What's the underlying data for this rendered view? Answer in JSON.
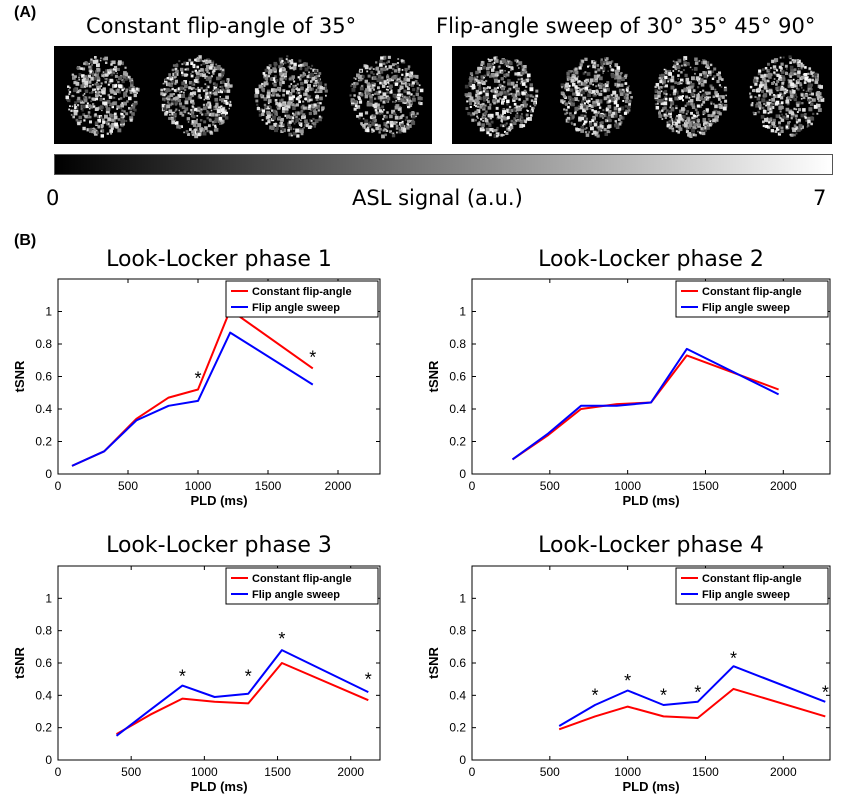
{
  "panel_a": {
    "label": "(A)",
    "left_heading": "Constant flip-angle of 35°",
    "right_heading": "Flip-angle sweep of 30° 35° 45° 90°",
    "colorbar": {
      "min_label": "0",
      "title": "ASL signal (a.u.)",
      "max_label": "7",
      "min": 0,
      "max": 7
    }
  },
  "panel_b": {
    "label": "(B)"
  },
  "chart_data": [
    {
      "type": "line",
      "title": "Look-Locker phase 1",
      "xlabel": "PLD (ms)",
      "ylabel": "tSNR",
      "xlim": [
        0,
        2300
      ],
      "ylim": [
        0,
        1.2
      ],
      "xticks": [
        "0",
        "500",
        "1000",
        "1500",
        "2000"
      ],
      "yticks": [
        "0",
        "0.2",
        "0.4",
        "0.6",
        "0.8",
        "1"
      ],
      "legend": "top-right",
      "series": [
        {
          "name": "Constant flip-angle",
          "color": "#ff0000",
          "x": [
            100,
            330,
            560,
            790,
            1000,
            1230,
            1820
          ],
          "y": [
            0.05,
            0.14,
            0.34,
            0.47,
            0.52,
            1.01,
            0.65
          ]
        },
        {
          "name": "Flip angle sweep",
          "color": "#0000ff",
          "x": [
            100,
            330,
            560,
            790,
            1000,
            1230,
            1820
          ],
          "y": [
            0.05,
            0.14,
            0.33,
            0.42,
            0.45,
            0.87,
            0.55
          ]
        }
      ],
      "annotations": [
        {
          "text": "*",
          "x": 1000,
          "y": 0.6
        },
        {
          "text": "*",
          "x": 1230,
          "y": 1.09
        },
        {
          "text": "*",
          "x": 1820,
          "y": 0.73
        }
      ]
    },
    {
      "type": "line",
      "title": "Look-Locker phase 2",
      "xlabel": "PLD (ms)",
      "ylabel": "tSNR",
      "xlim": [
        0,
        2300
      ],
      "ylim": [
        0,
        1.2
      ],
      "xticks": [
        "0",
        "500",
        "1000",
        "1500",
        "2000"
      ],
      "yticks": [
        "0",
        "0.2",
        "0.4",
        "0.6",
        "0.8",
        "1"
      ],
      "legend": "top-right",
      "series": [
        {
          "name": "Constant flip-angle",
          "color": "#ff0000",
          "x": [
            260,
            490,
            700,
            930,
            1150,
            1380,
            1970
          ],
          "y": [
            0.09,
            0.24,
            0.4,
            0.43,
            0.44,
            0.73,
            0.52
          ]
        },
        {
          "name": "Flip angle sweep",
          "color": "#0000ff",
          "x": [
            260,
            490,
            700,
            930,
            1150,
            1380,
            1970
          ],
          "y": [
            0.09,
            0.25,
            0.42,
            0.42,
            0.44,
            0.77,
            0.49
          ]
        }
      ],
      "annotations": []
    },
    {
      "type": "line",
      "title": "Look-Locker phase 3",
      "xlabel": "PLD (ms)",
      "ylabel": "tSNR",
      "xlim": [
        0,
        2200
      ],
      "ylim": [
        0,
        1.2
      ],
      "xticks": [
        "0",
        "500",
        "1000",
        "1500",
        "2000"
      ],
      "yticks": [
        "0",
        "0.2",
        "0.4",
        "0.6",
        "0.8",
        "1"
      ],
      "legend": "top-right",
      "series": [
        {
          "name": "Constant flip-angle",
          "color": "#ff0000",
          "x": [
            400,
            630,
            850,
            1070,
            1300,
            1530,
            2120
          ],
          "y": [
            0.16,
            0.28,
            0.38,
            0.36,
            0.35,
            0.6,
            0.37
          ]
        },
        {
          "name": "Flip angle sweep",
          "color": "#0000ff",
          "x": [
            400,
            630,
            850,
            1070,
            1300,
            1530,
            2120
          ],
          "y": [
            0.15,
            0.31,
            0.46,
            0.39,
            0.41,
            0.68,
            0.42
          ]
        }
      ],
      "annotations": [
        {
          "text": "*",
          "x": 850,
          "y": 0.53
        },
        {
          "text": "*",
          "x": 1300,
          "y": 0.53
        },
        {
          "text": "*",
          "x": 1530,
          "y": 0.76
        },
        {
          "text": "*",
          "x": 2120,
          "y": 0.51
        }
      ]
    },
    {
      "type": "line",
      "title": "Look-Locker phase 4",
      "xlabel": "PLD (ms)",
      "ylabel": "tSNR",
      "xlim": [
        0,
        2300
      ],
      "ylim": [
        0,
        1.2
      ],
      "xticks": [
        "0",
        "500",
        "1000",
        "1500",
        "2000"
      ],
      "yticks": [
        "0",
        "0.2",
        "0.4",
        "0.6",
        "0.8",
        "1"
      ],
      "legend": "top-right",
      "series": [
        {
          "name": "Constant flip-angle",
          "color": "#ff0000",
          "x": [
            560,
            790,
            1000,
            1230,
            1450,
            1680,
            2270
          ],
          "y": [
            0.19,
            0.27,
            0.33,
            0.27,
            0.26,
            0.44,
            0.27
          ]
        },
        {
          "name": "Flip angle sweep",
          "color": "#0000ff",
          "x": [
            560,
            790,
            1000,
            1230,
            1450,
            1680,
            2270
          ],
          "y": [
            0.21,
            0.34,
            0.43,
            0.34,
            0.36,
            0.58,
            0.36
          ]
        }
      ],
      "annotations": [
        {
          "text": "*",
          "x": 790,
          "y": 0.41
        },
        {
          "text": "*",
          "x": 1000,
          "y": 0.5
        },
        {
          "text": "*",
          "x": 1230,
          "y": 0.41
        },
        {
          "text": "*",
          "x": 1450,
          "y": 0.43
        },
        {
          "text": "*",
          "x": 1680,
          "y": 0.64
        },
        {
          "text": "*",
          "x": 2270,
          "y": 0.43
        }
      ]
    }
  ]
}
